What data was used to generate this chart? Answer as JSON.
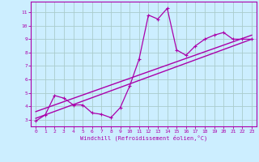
{
  "xlabel": "Windchill (Refroidissement éolien,°C)",
  "background_color": "#cceeff",
  "grid_color": "#aacccc",
  "line_color": "#aa00aa",
  "spine_color": "#aa00aa",
  "xlim": [
    -0.5,
    23.5
  ],
  "ylim": [
    2.5,
    11.8
  ],
  "xticks": [
    0,
    1,
    2,
    3,
    4,
    5,
    6,
    7,
    8,
    9,
    10,
    11,
    12,
    13,
    14,
    15,
    16,
    17,
    18,
    19,
    20,
    21,
    22,
    23
  ],
  "yticks": [
    3,
    4,
    5,
    6,
    7,
    8,
    9,
    10,
    11
  ],
  "curve_x": [
    0,
    1,
    2,
    3,
    4,
    5,
    6,
    7,
    8,
    9,
    10,
    11,
    12,
    13,
    14,
    15,
    16,
    17,
    18,
    19,
    20,
    21,
    22,
    23
  ],
  "curve_y": [
    2.9,
    3.35,
    4.8,
    4.6,
    4.1,
    4.1,
    3.5,
    3.4,
    3.15,
    3.9,
    5.5,
    7.5,
    10.8,
    10.5,
    11.3,
    8.2,
    7.8,
    8.5,
    9.0,
    9.3,
    9.5,
    9.0,
    9.0,
    9.0
  ],
  "line1_x": [
    0,
    23
  ],
  "line1_y": [
    3.1,
    9.0
  ],
  "line2_x": [
    0,
    23
  ],
  "line2_y": [
    3.6,
    9.3
  ]
}
